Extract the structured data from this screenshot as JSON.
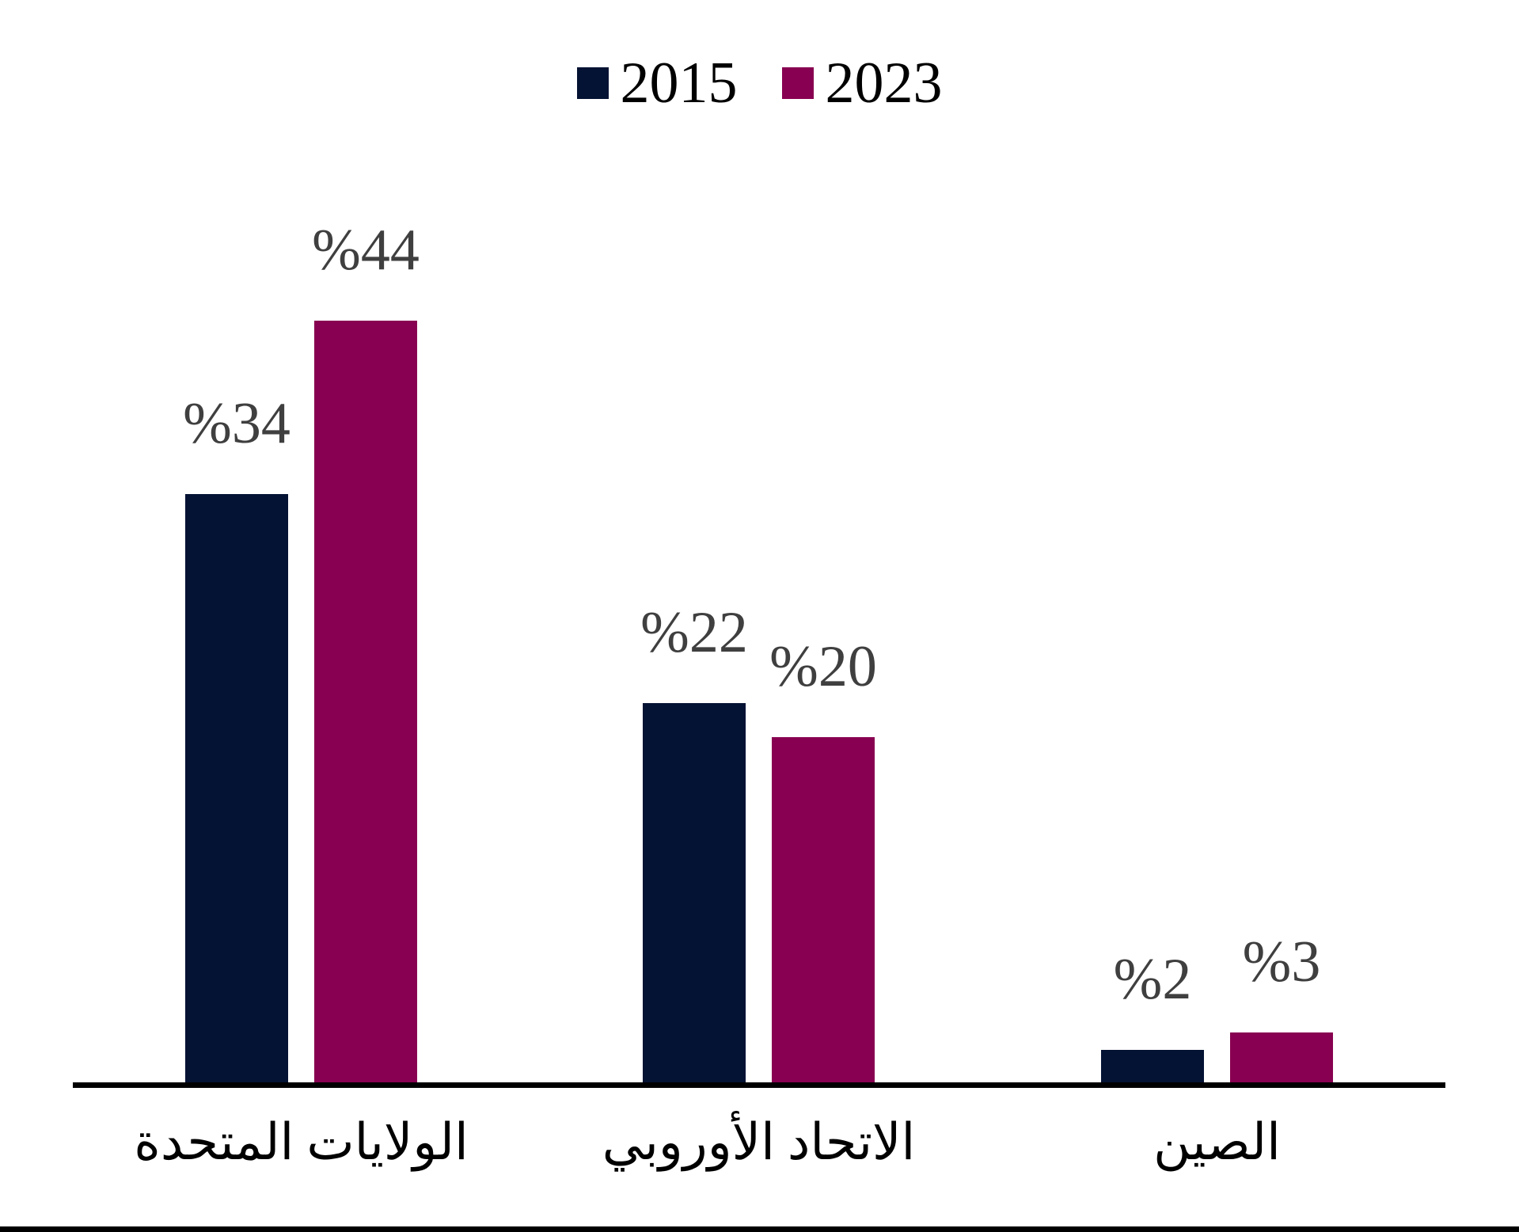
{
  "chart_data": {
    "type": "bar",
    "title": "",
    "xlabel": "",
    "ylabel": "",
    "categories": [
      "الولايات المتحدة",
      "الاتحاد الأوروبي",
      "الصين"
    ],
    "series": [
      {
        "name": "2015",
        "color": "#041233",
        "values": [
          34,
          22,
          2
        ],
        "value_labels": [
          "%34",
          "%22",
          "%2"
        ]
      },
      {
        "name": "2023",
        "color": "#880051",
        "values": [
          44,
          20,
          3
        ],
        "value_labels": [
          "%44",
          "%20",
          "%3"
        ]
      }
    ],
    "ylim": [
      0,
      50
    ],
    "grid": false,
    "legend_position": "top-center",
    "value_label_color": "#3f3f3f",
    "axis_line_color": "#000000",
    "category_label_color": "#000000",
    "background_color": "#ffffff"
  }
}
